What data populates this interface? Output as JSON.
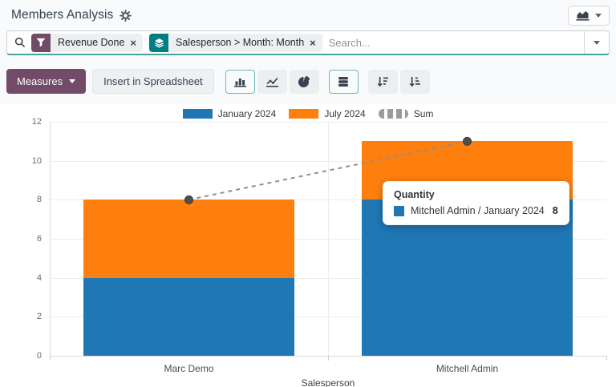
{
  "header": {
    "title": "Members Analysis",
    "settings_icon": "gear-icon",
    "view_switcher_icon": "area-chart-icon"
  },
  "search": {
    "placeholder": "Search...",
    "facets": [
      {
        "type": "filter",
        "icon": "filter-icon",
        "color": "#714B67",
        "label": "Revenue Done",
        "remove": "×"
      },
      {
        "type": "groupby",
        "icon": "layers-icon",
        "color": "#017E84",
        "label": "Salesperson > Month: Month",
        "remove": "×"
      }
    ]
  },
  "toolbar": {
    "measures_label": "Measures",
    "insert_label": "Insert in Spreadsheet",
    "chart_type_buttons": [
      {
        "name": "bar-chart-icon",
        "active": true
      },
      {
        "name": "line-chart-icon",
        "active": false
      },
      {
        "name": "pie-chart-icon",
        "active": false
      },
      {
        "name": "stacked-icon",
        "active": true
      },
      {
        "name": "sort-desc-icon",
        "active": false
      },
      {
        "name": "sort-asc-icon",
        "active": false
      }
    ]
  },
  "chart_data": {
    "type": "bar",
    "stacked": true,
    "categories": [
      "Marc Demo",
      "Mitchell Admin"
    ],
    "series": [
      {
        "name": "January 2024",
        "color": "#1f77b4",
        "kind": "bar",
        "values": [
          4,
          8
        ]
      },
      {
        "name": "July 2024",
        "color": "#ff7f0e",
        "kind": "bar",
        "values": [
          4,
          3
        ]
      },
      {
        "name": "Sum",
        "color": "#8f8f8f",
        "kind": "line",
        "dashed": true,
        "values": [
          8,
          11
        ]
      }
    ],
    "xlabel": "Salesperson",
    "ylabel": "",
    "ylim": [
      0,
      12
    ],
    "yticks": [
      0,
      2,
      4,
      6,
      8,
      10,
      12
    ],
    "legend_position": "top",
    "grid": true
  },
  "tooltip": {
    "title": "Quantity",
    "rows": [
      {
        "swatch_color": "#1f77b4",
        "label": "Mitchell Admin / January 2024",
        "value": "8"
      }
    ]
  },
  "colors": {
    "brand_primary": "#714B67",
    "accent_teal": "#017E84",
    "bar_blue": "#1f77b4",
    "bar_orange": "#ff7f0e",
    "sum_gray": "#8f8f8f",
    "panel_bg": "#f9fafb"
  }
}
